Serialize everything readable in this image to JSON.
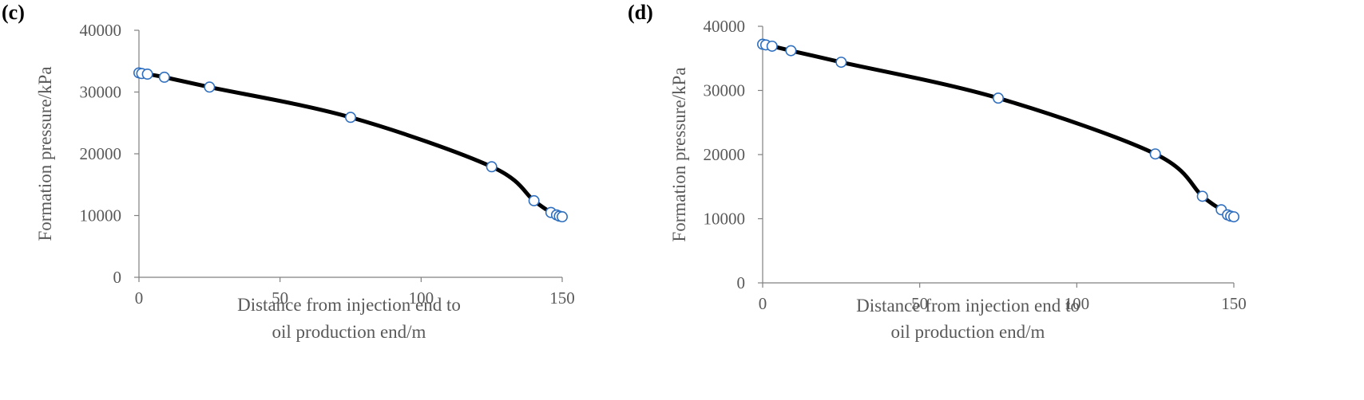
{
  "chart_data": [
    {
      "type": "line",
      "panel_label": "(c)",
      "xlabel_line1": "Distance  from injection end to",
      "xlabel_line2": "oil production end/m",
      "ylabel": "Formation pressure/kPa",
      "xlim": [
        0,
        150
      ],
      "ylim": [
        0,
        40000
      ],
      "x_ticks": [
        0,
        50,
        100,
        150
      ],
      "x_tick_labels": [
        "0",
        "50",
        "100",
        "150"
      ],
      "y_ticks": [
        0,
        10000,
        20000,
        30000,
        40000
      ],
      "y_tick_labels": [
        "0",
        "10000",
        "20000",
        "30000",
        "40000"
      ],
      "grid": false,
      "line_color": "#000000",
      "marker_edge_color": "#2f6fbf",
      "marker_face_color": "#ffffff",
      "series": [
        {
          "x": [
            0,
            1,
            3,
            9,
            25,
            75,
            125,
            140,
            146,
            148,
            149,
            150
          ],
          "y": [
            33100,
            33000,
            32900,
            32400,
            30800,
            25900,
            17900,
            12400,
            10500,
            10100,
            9900,
            9800
          ]
        }
      ]
    },
    {
      "type": "line",
      "panel_label": "(d)",
      "xlabel_line1": "Distance  from injection end to",
      "xlabel_line2": "oil production end/m",
      "ylabel": "Formation pressure/kPa",
      "xlim": [
        0,
        150
      ],
      "ylim": [
        0,
        40000
      ],
      "x_ticks": [
        0,
        50,
        100,
        150
      ],
      "x_tick_labels": [
        "0",
        "50",
        "100",
        "150"
      ],
      "y_ticks": [
        0,
        10000,
        20000,
        30000,
        40000
      ],
      "y_tick_labels": [
        "0",
        "10000",
        "20000",
        "30000",
        "40000"
      ],
      "grid": false,
      "line_color": "#000000",
      "marker_edge_color": "#2f6fbf",
      "marker_face_color": "#ffffff",
      "series": [
        {
          "x": [
            0,
            1,
            3,
            9,
            25,
            75,
            125,
            140,
            146,
            148,
            149,
            150
          ],
          "y": [
            37200,
            37100,
            36900,
            36200,
            34400,
            28800,
            20100,
            13500,
            11400,
            10600,
            10400,
            10300
          ]
        }
      ]
    }
  ]
}
